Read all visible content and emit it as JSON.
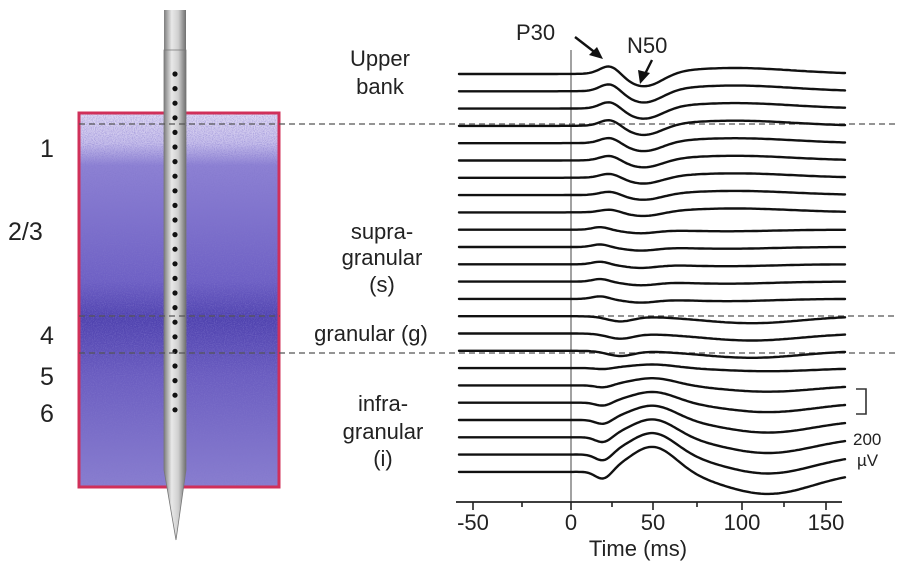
{
  "layers": [
    "1",
    "2/3",
    "4",
    "5",
    "6"
  ],
  "regions": {
    "upper_bank": [
      "Upper",
      "bank"
    ],
    "supragranular": [
      "supra-",
      "granular",
      "(s)"
    ],
    "granular": "granular (g)",
    "infragranular": [
      "infra-",
      "granular",
      "(i)"
    ]
  },
  "peaks": {
    "p30": "P30",
    "n50": "N50"
  },
  "axis": {
    "ticks": [
      "-50",
      "0",
      "50",
      "100",
      "150"
    ],
    "title": "Time (ms)"
  },
  "scale_bar": {
    "value": "200",
    "unit": "µV"
  },
  "colors": {
    "frame": "#d0305a",
    "tissue_light": "#c9c3ea",
    "tissue_dark": "#3a2f9a",
    "probe": "#b8b8b8",
    "trace": "#111111"
  },
  "trace_count": 24
}
